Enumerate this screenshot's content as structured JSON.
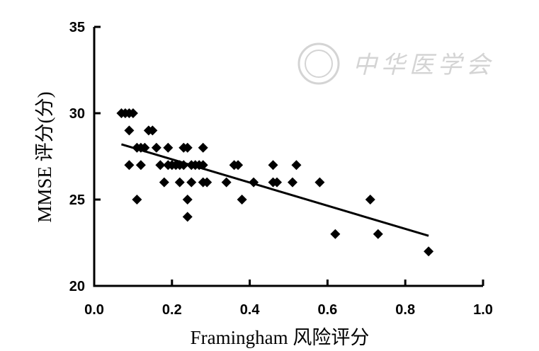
{
  "watermark": {
    "text": "中华医学会"
  },
  "chart_data": {
    "type": "scatter",
    "xlabel": "Framingham 风险评分",
    "ylabel": "MMSE 评分(分)",
    "xlim": [
      0.0,
      1.0
    ],
    "ylim": [
      20,
      35
    ],
    "xticks": [
      "0.0",
      "0.2",
      "0.4",
      "0.6",
      "0.8",
      "1.0"
    ],
    "yticks": [
      "20",
      "25",
      "30",
      "35"
    ],
    "grid": false,
    "legend": "none",
    "marker": "diamond",
    "marker_color": "#000000",
    "points": [
      [
        0.07,
        30
      ],
      [
        0.08,
        30
      ],
      [
        0.09,
        30
      ],
      [
        0.1,
        30
      ],
      [
        0.09,
        29
      ],
      [
        0.14,
        29
      ],
      [
        0.15,
        29
      ],
      [
        0.11,
        28
      ],
      [
        0.12,
        28
      ],
      [
        0.13,
        28
      ],
      [
        0.16,
        28
      ],
      [
        0.19,
        28
      ],
      [
        0.23,
        28
      ],
      [
        0.24,
        28
      ],
      [
        0.28,
        28
      ],
      [
        0.09,
        27
      ],
      [
        0.12,
        27
      ],
      [
        0.17,
        27
      ],
      [
        0.19,
        27
      ],
      [
        0.2,
        27
      ],
      [
        0.21,
        27
      ],
      [
        0.22,
        27
      ],
      [
        0.23,
        27
      ],
      [
        0.25,
        27
      ],
      [
        0.26,
        27
      ],
      [
        0.27,
        27
      ],
      [
        0.28,
        27
      ],
      [
        0.36,
        27
      ],
      [
        0.37,
        27
      ],
      [
        0.46,
        27
      ],
      [
        0.52,
        27
      ],
      [
        0.18,
        26
      ],
      [
        0.22,
        26
      ],
      [
        0.25,
        26
      ],
      [
        0.28,
        26
      ],
      [
        0.29,
        26
      ],
      [
        0.34,
        26
      ],
      [
        0.41,
        26
      ],
      [
        0.46,
        26
      ],
      [
        0.47,
        26
      ],
      [
        0.51,
        26
      ],
      [
        0.58,
        26
      ],
      [
        0.11,
        25
      ],
      [
        0.24,
        25
      ],
      [
        0.38,
        25
      ],
      [
        0.71,
        25
      ],
      [
        0.24,
        24
      ],
      [
        0.62,
        23
      ],
      [
        0.73,
        23
      ],
      [
        0.86,
        22
      ]
    ],
    "trend_line": {
      "x": [
        0.07,
        0.86
      ],
      "y": [
        28.2,
        22.9
      ]
    }
  }
}
